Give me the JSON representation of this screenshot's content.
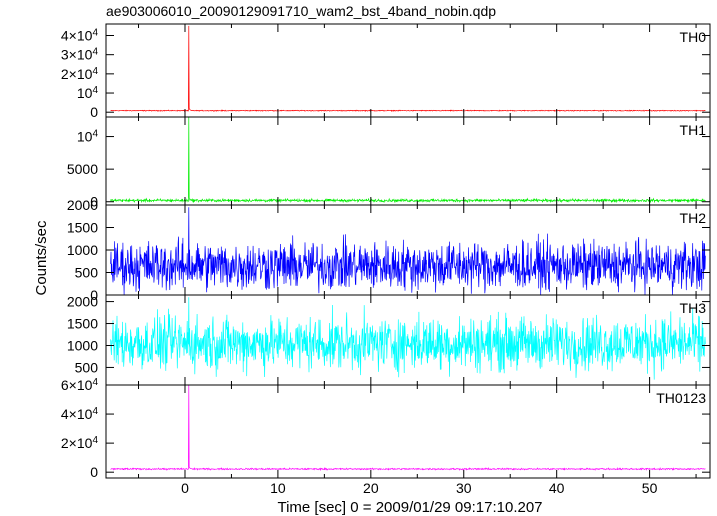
{
  "title": "ae903006010_20090129091710_wam2_bst_4band_nobin.qdp",
  "chart_data": {
    "type": "line",
    "title": "ae903006010_20090129091710_wam2_bst_4band_nobin.qdp",
    "xlabel": "Time [sec] 0 = 2009/01/29 09:17:10.207",
    "ylabel": "Counts/sec",
    "xlim": [
      -8.5,
      56.5
    ],
    "x_ticks": [
      0,
      10,
      20,
      30,
      40,
      50
    ],
    "x_tick_labels": [
      "0",
      "10",
      "20",
      "30",
      "40",
      "50"
    ],
    "x_data_range": [
      -8,
      56
    ],
    "burst_time": 0.4,
    "panels": [
      {
        "name": "TH0",
        "color": "#ff0000",
        "ylim": [
          -2500,
          46000
        ],
        "ticks": [
          {
            "v": 0,
            "label": "0"
          },
          {
            "v": 10000,
            "label": "10^4"
          },
          {
            "v": 20000,
            "label": "2×10^4"
          },
          {
            "v": 30000,
            "label": "3×10^4"
          },
          {
            "v": 40000,
            "label": "4×10^4"
          }
        ],
        "baseline": 800,
        "noise": 150,
        "peak": 45000
      },
      {
        "name": "TH1",
        "color": "#00ee00",
        "ylim": [
          -500,
          13000
        ],
        "ticks": [
          {
            "v": 0,
            "label": "0"
          },
          {
            "v": 5000,
            "label": "5000"
          },
          {
            "v": 10000,
            "label": "10^4"
          }
        ],
        "baseline": 200,
        "noise": 150,
        "peak": 13000
      },
      {
        "name": "TH2",
        "color": "#0000ff",
        "ylim": [
          0,
          2000
        ],
        "ticks": [
          {
            "v": 0,
            "label": "0"
          },
          {
            "v": 500,
            "label": "500"
          },
          {
            "v": 1000,
            "label": "1000"
          },
          {
            "v": 1500,
            "label": "1500"
          },
          {
            "v": 2000,
            "label": "2000"
          }
        ],
        "baseline": 650,
        "noise": 380,
        "peak": 1950
      },
      {
        "name": "TH3",
        "color": "#00ffff",
        "ylim": [
          100,
          2150
        ],
        "ticks": [
          {
            "v": 500,
            "label": "500"
          },
          {
            "v": 1000,
            "label": "1000"
          },
          {
            "v": 1500,
            "label": "1500"
          },
          {
            "v": 2000,
            "label": "2000"
          }
        ],
        "baseline": 1050,
        "noise": 430,
        "peak": 2100
      },
      {
        "name": "TH0123",
        "color": "#ff00ff",
        "ylim": [
          -4000,
          60000
        ],
        "ticks": [
          {
            "v": 0,
            "label": "0"
          },
          {
            "v": 20000,
            "label": "2×10^4"
          },
          {
            "v": 40000,
            "label": "4×10^4"
          },
          {
            "v": 60000,
            "label": "6×10^4"
          }
        ],
        "baseline": 2200,
        "noise": 350,
        "peak": 60000
      }
    ]
  }
}
